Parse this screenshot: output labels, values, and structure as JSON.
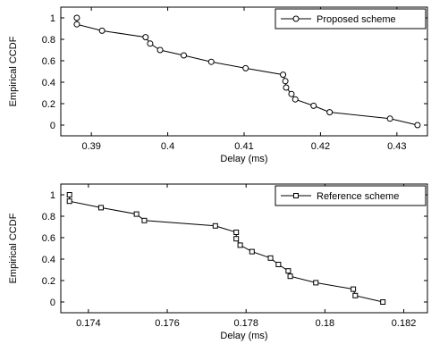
{
  "chart_data": [
    {
      "type": "line",
      "xlabel": "Delay (ms)",
      "ylabel": "Empirical CCDF",
      "xlim": [
        0.386,
        0.434
      ],
      "ylim": [
        -0.1,
        1.1
      ],
      "xticks": [
        0.39,
        0.4,
        0.41,
        0.42,
        0.43
      ],
      "xtick_labels": [
        "0.39",
        "0.4",
        "0.41",
        "0.42",
        "0.43"
      ],
      "yticks": [
        0,
        0.2,
        0.4,
        0.6,
        0.8,
        1
      ],
      "ytick_labels": [
        "0",
        "0.2",
        "0.4",
        "0.6",
        "0.8",
        "1"
      ],
      "grid": false,
      "legend_position": "top-right",
      "marker": "circle",
      "series": [
        {
          "name": "Proposed scheme",
          "x": [
            0.3881,
            0.3881,
            0.3914,
            0.3971,
            0.3977,
            0.399,
            0.4021,
            0.4057,
            0.4102,
            0.4151,
            0.4154,
            0.4155,
            0.4162,
            0.4167,
            0.4191,
            0.4212,
            0.4291,
            0.4327
          ],
          "y": [
            1.0,
            0.94,
            0.88,
            0.82,
            0.76,
            0.7,
            0.65,
            0.59,
            0.53,
            0.47,
            0.41,
            0.35,
            0.29,
            0.24,
            0.18,
            0.12,
            0.06,
            0.0
          ]
        }
      ]
    },
    {
      "type": "line",
      "xlabel": "Delay (ms)",
      "ylabel": "Empirical CCDF",
      "xlim": [
        0.1733,
        0.1826
      ],
      "ylim": [
        -0.1,
        1.1
      ],
      "xticks": [
        0.174,
        0.176,
        0.178,
        0.18,
        0.182
      ],
      "xtick_labels": [
        "0.174",
        "0.176",
        "0.178",
        "0.18",
        "0.182"
      ],
      "yticks": [
        0,
        0.2,
        0.4,
        0.6,
        0.8,
        1
      ],
      "ytick_labels": [
        "0",
        "0.2",
        "0.4",
        "0.6",
        "0.8",
        "1"
      ],
      "grid": false,
      "legend_position": "top-right",
      "marker": "square",
      "series": [
        {
          "name": "Reference scheme",
          "x": [
            0.17352,
            0.17352,
            0.17432,
            0.17522,
            0.17542,
            0.17722,
            0.17775,
            0.17775,
            0.17785,
            0.17815,
            0.17862,
            0.17882,
            0.17907,
            0.17912,
            0.17977,
            0.18072,
            0.18077,
            0.18147
          ],
          "y": [
            1.0,
            0.94,
            0.88,
            0.82,
            0.76,
            0.71,
            0.65,
            0.59,
            0.53,
            0.47,
            0.41,
            0.35,
            0.29,
            0.24,
            0.18,
            0.12,
            0.06,
            0.0
          ]
        }
      ]
    }
  ]
}
